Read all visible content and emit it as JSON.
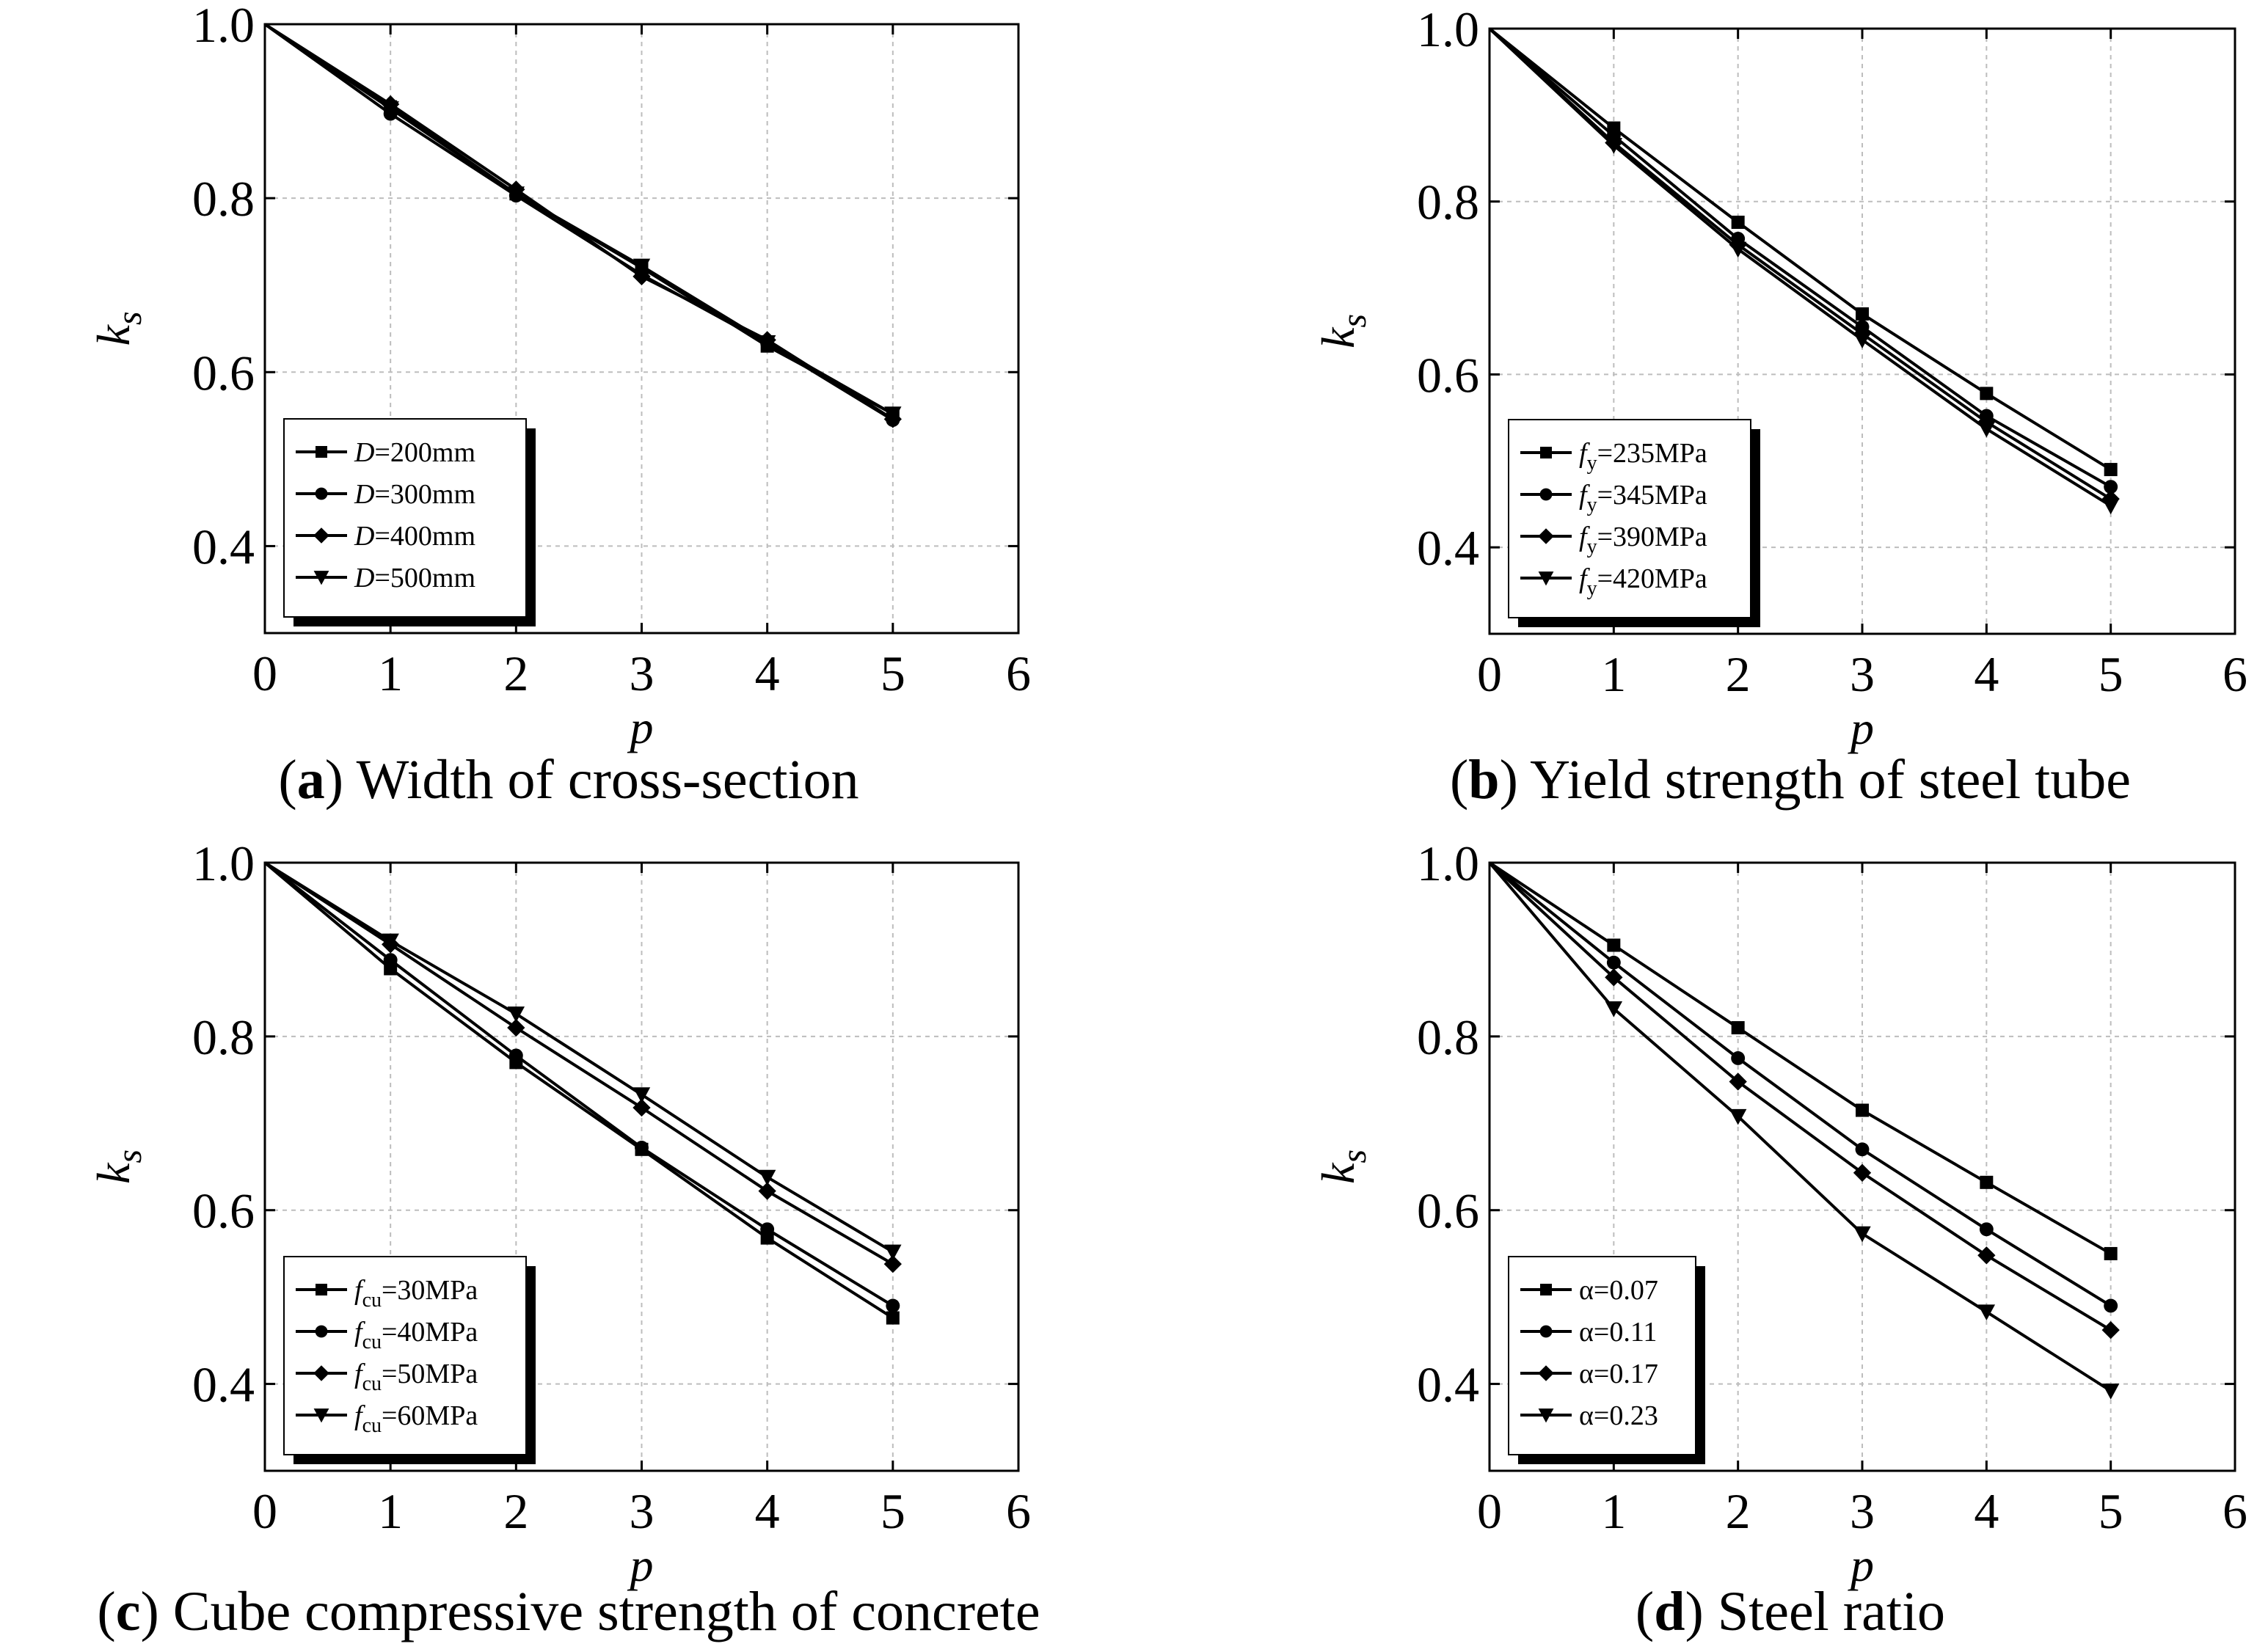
{
  "figure": "Parametric analysis of k_s versus p",
  "chart_data": [
    {
      "type": "line",
      "id": "a",
      "caption_letter": "a",
      "caption_text": "Width of cross-section",
      "xlabel": "p",
      "ylabel_main": "k",
      "ylabel_sub": "s",
      "xlim": [
        0,
        6
      ],
      "ylim": [
        0.3,
        1.0
      ],
      "xticks": [
        "0",
        "1",
        "2",
        "3",
        "4",
        "5",
        "6"
      ],
      "yticks": [
        "0.4",
        "0.6",
        "0.8",
        "1.0"
      ],
      "grid": true,
      "legend_position": "bottom-left",
      "x": [
        0,
        1,
        2,
        3,
        4,
        5
      ],
      "series": [
        {
          "name_main": "D",
          "name_sub": "",
          "name_rest": "=200mm",
          "marker": "square",
          "values": [
            1.0,
            0.905,
            0.805,
            0.72,
            0.63,
            0.552
          ]
        },
        {
          "name_main": "D",
          "name_sub": "",
          "name_rest": "=300mm",
          "marker": "circle",
          "values": [
            1.0,
            0.897,
            0.803,
            0.712,
            0.633,
            0.545
          ]
        },
        {
          "name_main": "D",
          "name_sub": "",
          "name_rest": "=400mm",
          "marker": "diamond",
          "values": [
            1.0,
            0.908,
            0.81,
            0.71,
            0.637,
            0.546
          ]
        },
        {
          "name_main": "D",
          "name_sub": "",
          "name_rest": "=500mm",
          "marker": "triangle-down",
          "values": [
            1.0,
            0.903,
            0.805,
            0.722,
            0.634,
            0.552
          ]
        }
      ]
    },
    {
      "type": "line",
      "id": "b",
      "caption_letter": "b",
      "caption_text": "Yield strength of steel tube",
      "xlabel": "p",
      "ylabel_main": "k",
      "ylabel_sub": "s",
      "xlim": [
        0,
        6
      ],
      "ylim": [
        0.3,
        1.0
      ],
      "xticks": [
        "0",
        "1",
        "2",
        "3",
        "4",
        "5",
        "6"
      ],
      "yticks": [
        "0.4",
        "0.6",
        "0.8",
        "1.0"
      ],
      "grid": true,
      "legend_position": "bottom-left",
      "x": [
        0,
        1,
        2,
        3,
        4,
        5
      ],
      "series": [
        {
          "name_main": "f",
          "name_sub": "y",
          "name_rest": "=235MPa",
          "marker": "square",
          "values": [
            1.0,
            0.885,
            0.776,
            0.67,
            0.578,
            0.49
          ]
        },
        {
          "name_main": "f",
          "name_sub": "y",
          "name_rest": "=345MPa",
          "marker": "circle",
          "values": [
            1.0,
            0.876,
            0.757,
            0.655,
            0.552,
            0.47
          ]
        },
        {
          "name_main": "f",
          "name_sub": "y",
          "name_rest": "=390MPa",
          "marker": "diamond",
          "values": [
            1.0,
            0.868,
            0.75,
            0.647,
            0.545,
            0.456
          ]
        },
        {
          "name_main": "f",
          "name_sub": "y",
          "name_rest": "=420MPa",
          "marker": "triangle-down",
          "values": [
            1.0,
            0.865,
            0.745,
            0.64,
            0.537,
            0.448
          ]
        }
      ]
    },
    {
      "type": "line",
      "id": "c",
      "caption_letter": "c",
      "caption_text": "Cube compressive strength of concrete",
      "xlabel": "p",
      "ylabel_main": "k",
      "ylabel_sub": "s",
      "xlim": [
        0,
        6
      ],
      "ylim": [
        0.3,
        1.0
      ],
      "xticks": [
        "0",
        "1",
        "2",
        "3",
        "4",
        "5",
        "6"
      ],
      "yticks": [
        "0.4",
        "0.6",
        "0.8",
        "1.0"
      ],
      "grid": true,
      "legend_position": "bottom-left",
      "x": [
        0,
        1,
        2,
        3,
        4,
        5
      ],
      "series": [
        {
          "name_main": "f",
          "name_sub": "cu",
          "name_rest": "=30MPa",
          "marker": "square",
          "values": [
            1.0,
            0.878,
            0.77,
            0.67,
            0.568,
            0.476
          ]
        },
        {
          "name_main": "f",
          "name_sub": "cu",
          "name_rest": "=40MPa",
          "marker": "circle",
          "values": [
            1.0,
            0.888,
            0.778,
            0.672,
            0.578,
            0.49
          ]
        },
        {
          "name_main": "f",
          "name_sub": "cu",
          "name_rest": "=50MPa",
          "marker": "diamond",
          "values": [
            1.0,
            0.906,
            0.81,
            0.718,
            0.622,
            0.538
          ]
        },
        {
          "name_main": "f",
          "name_sub": "cu",
          "name_rest": "=60MPa",
          "marker": "triangle-down",
          "values": [
            1.0,
            0.91,
            0.826,
            0.733,
            0.638,
            0.552
          ]
        }
      ]
    },
    {
      "type": "line",
      "id": "d",
      "caption_letter": "d",
      "caption_text": "Steel ratio",
      "xlabel": "p",
      "ylabel_main": "k",
      "ylabel_sub": "s",
      "xlim": [
        0,
        6
      ],
      "ylim": [
        0.3,
        1.0
      ],
      "xticks": [
        "0",
        "1",
        "2",
        "3",
        "4",
        "5",
        "6"
      ],
      "yticks": [
        "0.4",
        "0.6",
        "0.8",
        "1.0"
      ],
      "grid": true,
      "legend_position": "bottom-left",
      "x": [
        0,
        1,
        2,
        3,
        4,
        5
      ],
      "series": [
        {
          "name_main": "",
          "name_sub": "",
          "name_rest": "α=0.07",
          "marker": "square",
          "values": [
            1.0,
            0.905,
            0.81,
            0.715,
            0.632,
            0.55
          ]
        },
        {
          "name_main": "",
          "name_sub": "",
          "name_rest": "α=0.11",
          "marker": "circle",
          "values": [
            1.0,
            0.885,
            0.775,
            0.67,
            0.578,
            0.49
          ]
        },
        {
          "name_main": "",
          "name_sub": "",
          "name_rest": "α=0.17",
          "marker": "diamond",
          "values": [
            1.0,
            0.868,
            0.748,
            0.643,
            0.548,
            0.462
          ]
        },
        {
          "name_main": "",
          "name_sub": "",
          "name_rest": "α=0.23",
          "marker": "triangle-down",
          "values": [
            1.0,
            0.832,
            0.708,
            0.573,
            0.483,
            0.392
          ]
        }
      ]
    }
  ]
}
